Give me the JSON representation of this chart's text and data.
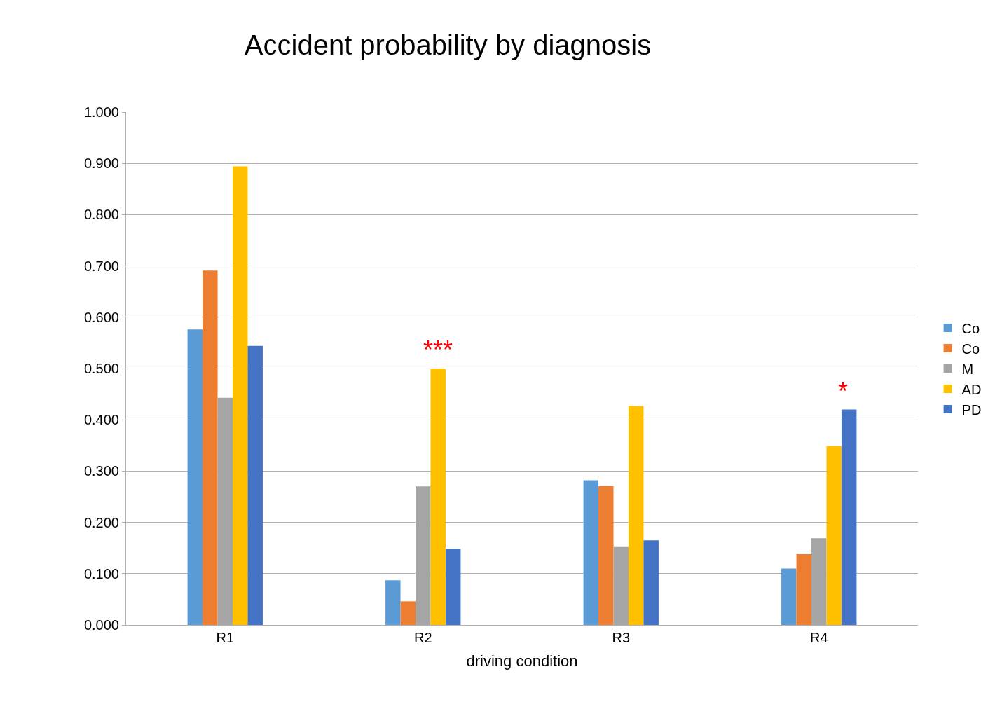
{
  "chart_data": {
    "type": "bar",
    "title": "Accident probability by diagnosis",
    "xlabel": "driving condition",
    "categories": [
      "R1",
      "R2",
      "R3",
      "R4"
    ],
    "series": [
      {
        "name": "Co",
        "color": "#5b9bd5",
        "values": [
          0.576,
          0.087,
          0.282,
          0.11
        ]
      },
      {
        "name": "Co",
        "color": "#ed7d31",
        "values": [
          0.691,
          0.046,
          0.271,
          0.138
        ]
      },
      {
        "name": "M",
        "color": "#a5a5a5",
        "values": [
          0.443,
          0.27,
          0.152,
          0.169
        ]
      },
      {
        "name": "AD",
        "color": "#ffc000",
        "values": [
          0.894,
          0.5,
          0.427,
          0.349
        ]
      },
      {
        "name": "PD",
        "color": "#4472c4",
        "values": [
          0.544,
          0.149,
          0.165,
          0.42
        ]
      }
    ],
    "ylim": [
      0,
      1
    ],
    "yticks": [
      {
        "value": 0,
        "label": "0.000"
      },
      {
        "value": 0.1,
        "label": "0.100"
      },
      {
        "value": 0.2,
        "label": "0.200"
      },
      {
        "value": 0.3,
        "label": "0.300"
      },
      {
        "value": 0.4,
        "label": "0.400"
      },
      {
        "value": 0.5,
        "label": "0.500"
      },
      {
        "value": 0.6,
        "label": "0.600"
      },
      {
        "value": 0.7,
        "label": "0.700"
      },
      {
        "value": 0.8,
        "label": "0.800"
      },
      {
        "value": 0.9,
        "label": "0.900"
      },
      {
        "value": 1,
        "label": "1.000"
      }
    ],
    "annotations": [
      "***",
      "*"
    ],
    "grid": "y",
    "legend": "right"
  }
}
